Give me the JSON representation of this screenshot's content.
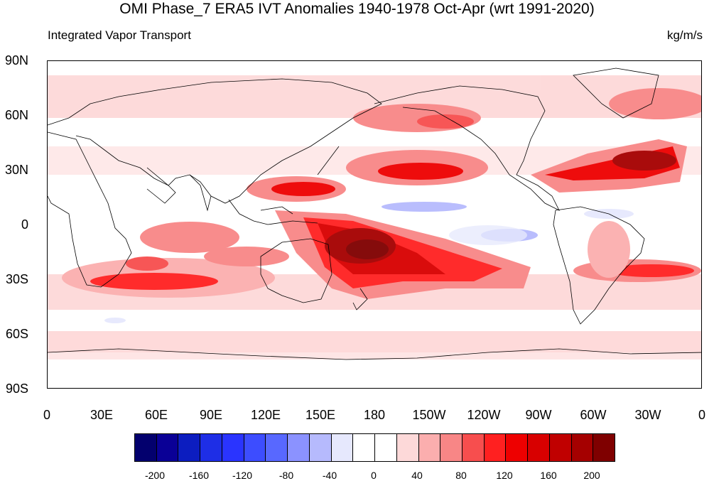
{
  "title": "OMI Phase_7 ERA5 IVT Anomalies 1940-1978 Oct-Apr (wrt 1991-2020)",
  "subtitle_left": "Integrated Vapor Transport",
  "subtitle_right": "kg/m/s",
  "lat_ticks": [
    "90N",
    "60N",
    "30N",
    "0",
    "30S",
    "60S",
    "90S"
  ],
  "lon_ticks": [
    "0",
    "30E",
    "60E",
    "90E",
    "120E",
    "150E",
    "180",
    "150W",
    "120W",
    "90W",
    "60W",
    "30W",
    "0"
  ],
  "colorbar": {
    "colors": [
      "#03006e",
      "#0a0096",
      "#0c1dc0",
      "#1e2ee6",
      "#2a34ff",
      "#3d4dff",
      "#5868ff",
      "#8b92ff",
      "#b6bafd",
      "#e6e8fd",
      "#ffffff",
      "#ffffff",
      "#fdd9d9",
      "#fbaeae",
      "#f88686",
      "#f74e4e",
      "#ff2020",
      "#ee0000",
      "#d80000",
      "#c00000",
      "#a50000",
      "#7f0000"
    ],
    "tick_labels": [
      "-200",
      "-160",
      "-120",
      "-80",
      "-40",
      "0",
      "40",
      "80",
      "120",
      "160",
      "200"
    ]
  }
}
